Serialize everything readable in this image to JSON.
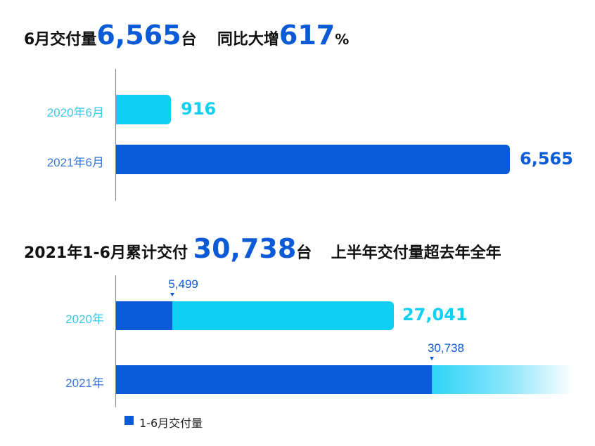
{
  "headline1": {
    "prefix": "6月交付量",
    "number": "6,565",
    "unit": "台",
    "middle": "同比大增",
    "growth": "617",
    "percent": "%"
  },
  "headline2": {
    "prefix": "2021年1-6月累计交付",
    "number": "30,738",
    "unit": "台",
    "suffix": "上半年交付量超去年全年"
  },
  "colors": {
    "dark_blue": "#0b5bd8",
    "cyan": "#0fd0f2",
    "label_cyan": "#3cc8e8",
    "label_blue": "#3a78d8"
  },
  "chart_data": [
    {
      "type": "bar",
      "orientation": "horizontal",
      "categories": [
        "2020年6月",
        "2021年6月"
      ],
      "values": [
        916,
        6565
      ],
      "value_labels": [
        "916",
        "6,565"
      ],
      "bar_colors": [
        "#0fd0f2",
        "#0b5bd8"
      ],
      "xlim": [
        0,
        6565
      ]
    },
    {
      "type": "bar",
      "orientation": "horizontal",
      "stacked": true,
      "categories": [
        "2020年",
        "2021年"
      ],
      "series": [
        {
          "name": "1-6月交付量",
          "values": [
            5499,
            30738
          ]
        },
        {
          "values": [
            21542,
            null
          ]
        }
      ],
      "h1_labels": [
        "5,499",
        "30,738"
      ],
      "total_labels": [
        "27,041",
        ""
      ],
      "totals": [
        27041,
        null
      ],
      "legend": {
        "entries": [
          "1-6月交付量"
        ],
        "position": "bottom-left"
      },
      "xlim": [
        0,
        44500
      ]
    }
  ]
}
